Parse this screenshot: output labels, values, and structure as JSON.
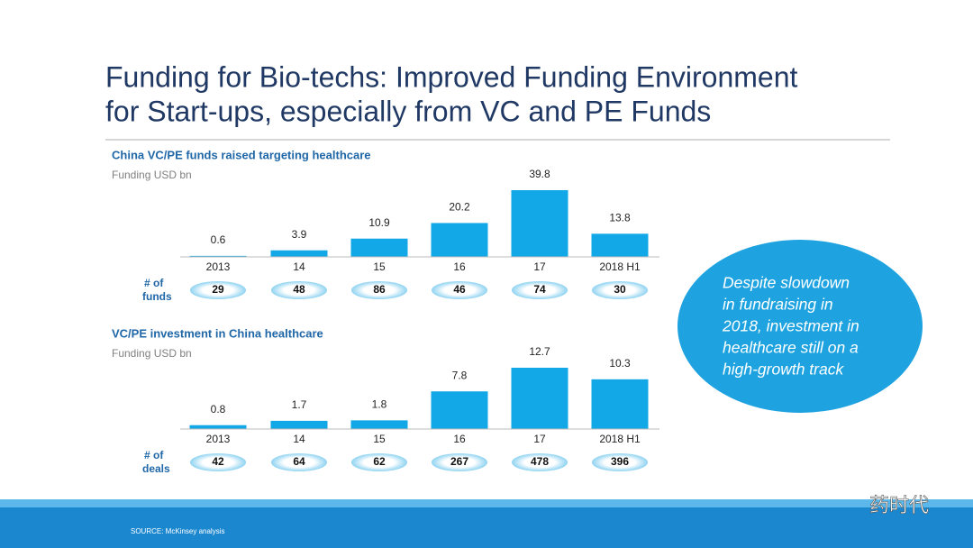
{
  "title_lines": [
    "Funding for Bio-techs: Improved Funding Environment",
    "for Start-ups, especially from VC and PE Funds"
  ],
  "chart_data": [
    {
      "type": "bar",
      "title": "China VC/PE funds raised targeting healthcare",
      "y_label": "Funding USD bn",
      "categories": [
        "2013",
        "14",
        "15",
        "16",
        "17",
        "2018 H1"
      ],
      "values": [
        0.6,
        3.9,
        10.9,
        20.2,
        39.8,
        13.8
      ],
      "color": "#12a7e6",
      "counts_label": [
        "# of",
        "funds"
      ],
      "counts": [
        29,
        48,
        86,
        46,
        74,
        30
      ]
    },
    {
      "type": "bar",
      "title": "VC/PE investment in China healthcare",
      "y_label": "Funding USD bn",
      "categories": [
        "2013",
        "14",
        "15",
        "16",
        "17",
        "2018 H1"
      ],
      "values": [
        0.8,
        1.7,
        1.8,
        7.8,
        12.7,
        10.3
      ],
      "color": "#12a7e6",
      "counts_label": [
        "# of",
        "deals"
      ],
      "counts": [
        42,
        64,
        62,
        267,
        478,
        396
      ]
    }
  ],
  "callout": [
    "Despite slowdown",
    "in fundraising in",
    "2018, investment in",
    "healthcare still on  a",
    "high-growth track"
  ],
  "source": "SOURCE:  McKinsey analysis",
  "watermark": "药时代"
}
